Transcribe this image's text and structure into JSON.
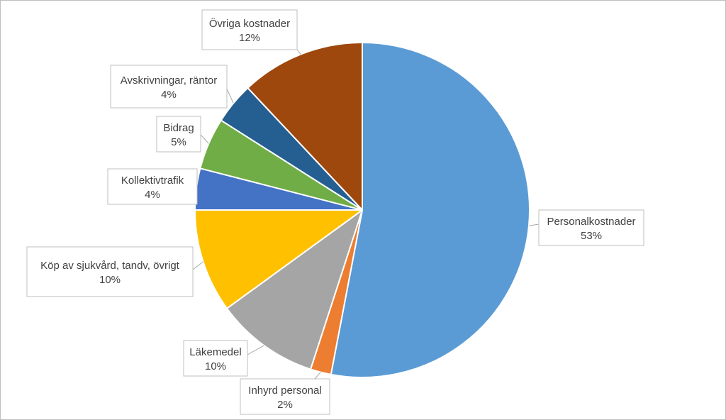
{
  "chart_data": {
    "type": "pie",
    "title": "",
    "legend": "none",
    "slices": [
      {
        "name": "Personalkostnader",
        "value": 53,
        "label": "53%",
        "color": "#5b9bd5"
      },
      {
        "name": "Inhyrd personal",
        "value": 2,
        "label": "2%",
        "color": "#ed7d31"
      },
      {
        "name": "Läkemedel",
        "value": 10,
        "label": "10%",
        "color": "#a5a5a5"
      },
      {
        "name": "Köp av sjukvård, tandv, övrigt",
        "value": 10,
        "label": "10%",
        "color": "#ffc000"
      },
      {
        "name": "Kollektivtrafik",
        "value": 4,
        "label": "4%",
        "color": "#4472c4"
      },
      {
        "name": "Bidrag",
        "value": 5,
        "label": "5%",
        "color": "#70ad47"
      },
      {
        "name": "Avskrivningar, räntor",
        "value": 4,
        "label": "4%",
        "color": "#255e91"
      },
      {
        "name": "Övriga kostnader",
        "value": 12,
        "label": "12%",
        "color": "#9e480e"
      }
    ]
  }
}
